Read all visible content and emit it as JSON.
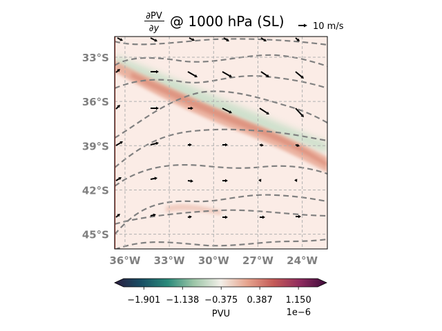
{
  "chart_data": {
    "type": "heatmap",
    "title": "@ 1000 hPa (SL)",
    "title_math": {
      "numerator": "∂PV",
      "denominator": "∂y"
    },
    "reference_vector_label": "10 m/s",
    "x_ticks": [
      "36°W",
      "33°W",
      "30°W",
      "27°W",
      "24°W"
    ],
    "x_tick_values": [
      -36,
      -33,
      -30,
      -27,
      -24
    ],
    "y_ticks": [
      "33°S",
      "36°S",
      "39°S",
      "42°S",
      "45°S"
    ],
    "y_tick_values": [
      -33,
      -36,
      -39,
      -42,
      -45
    ],
    "xlim": [
      -36.7,
      -22.3
    ],
    "ylim": [
      -46.0,
      -31.6
    ],
    "grid": true,
    "grid_style": "dashed",
    "colorbar": {
      "label": "PVU",
      "scale_label": "1e−6",
      "ticks": [
        "−1.901",
        "−1.138",
        "−0.375",
        "0.387",
        "1.150"
      ],
      "tick_values": [
        -1.901,
        -1.138,
        -0.375,
        0.387,
        1.15
      ],
      "range": [
        -2.3,
        1.53
      ],
      "extend": "both",
      "colormap": [
        "#2a1d3f",
        "#184e64",
        "#2a8a7a",
        "#9dc6a8",
        "#f2efe8",
        "#e6a48e",
        "#c45a57",
        "#8e2b5e",
        "#3d0b3a"
      ]
    },
    "features": {
      "band_negative_color": "#cfe3cf",
      "band_positive_color": "#e39a84",
      "background_color": "#fbece6",
      "contour_color": "#808080",
      "axis_tick_color": "#808080"
    }
  }
}
